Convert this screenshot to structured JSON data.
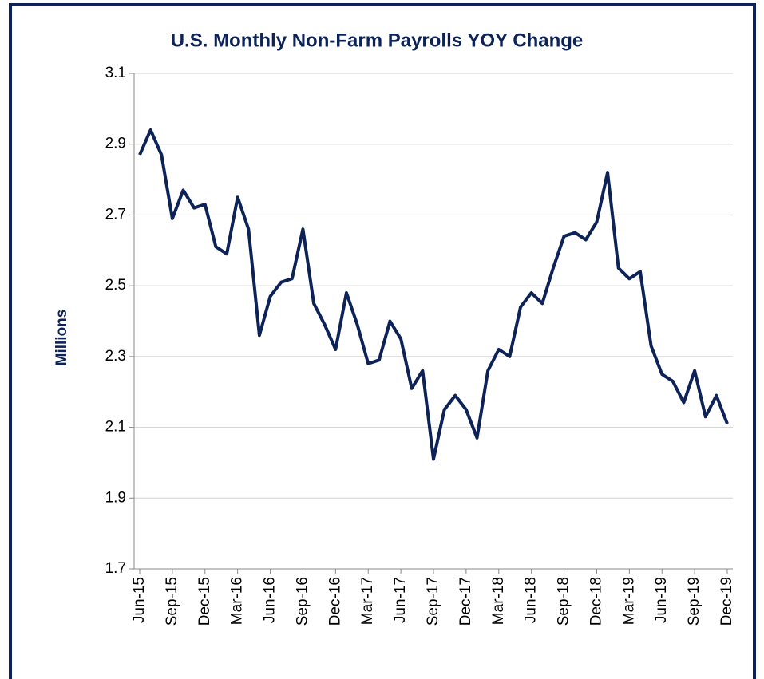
{
  "chart_data": {
    "type": "line",
    "title": "U.S. Monthly Non-Farm Payrolls YOY Change",
    "y_label": "Millions",
    "categories": [
      "Jun-15",
      null,
      null,
      "Sep-15",
      null,
      null,
      "Dec-15",
      null,
      null,
      "Mar-16",
      null,
      null,
      "Jun-16",
      null,
      null,
      "Sep-16",
      null,
      null,
      "Dec-16",
      null,
      null,
      "Mar-17",
      null,
      null,
      "Jun-17",
      null,
      null,
      "Sep-17",
      null,
      null,
      "Dec-17",
      null,
      null,
      "Mar-18",
      null,
      null,
      "Jun-18",
      null,
      null,
      "Sep-18",
      null,
      null,
      "Dec-18",
      null,
      null,
      "Mar-19",
      null,
      null,
      "Jun-19",
      null,
      null,
      "Sep-19",
      null,
      null,
      "Dec-19"
    ],
    "series": [
      {
        "name": "Non-Farm Payrolls YOY Change",
        "color": "#0d2358",
        "values": [
          2.87,
          2.94,
          2.87,
          2.69,
          2.77,
          2.72,
          2.73,
          2.61,
          2.59,
          2.75,
          2.66,
          2.36,
          2.47,
          2.51,
          2.52,
          2.66,
          2.45,
          2.39,
          2.32,
          2.48,
          2.39,
          2.28,
          2.29,
          2.4,
          2.35,
          2.21,
          2.26,
          2.01,
          2.15,
          2.19,
          2.15,
          2.07,
          2.26,
          2.32,
          2.3,
          2.44,
          2.48,
          2.45,
          2.55,
          2.64,
          2.65,
          2.63,
          2.68,
          2.82,
          2.55,
          2.52,
          2.54,
          2.33,
          2.25,
          2.23,
          2.17,
          2.26,
          2.13,
          2.19,
          2.11
        ]
      }
    ],
    "ylim": [
      1.7,
      3.1
    ],
    "yticks": [
      1.7,
      1.9,
      2.1,
      2.3,
      2.5,
      2.7,
      2.9,
      3.1
    ],
    "grid": true
  }
}
